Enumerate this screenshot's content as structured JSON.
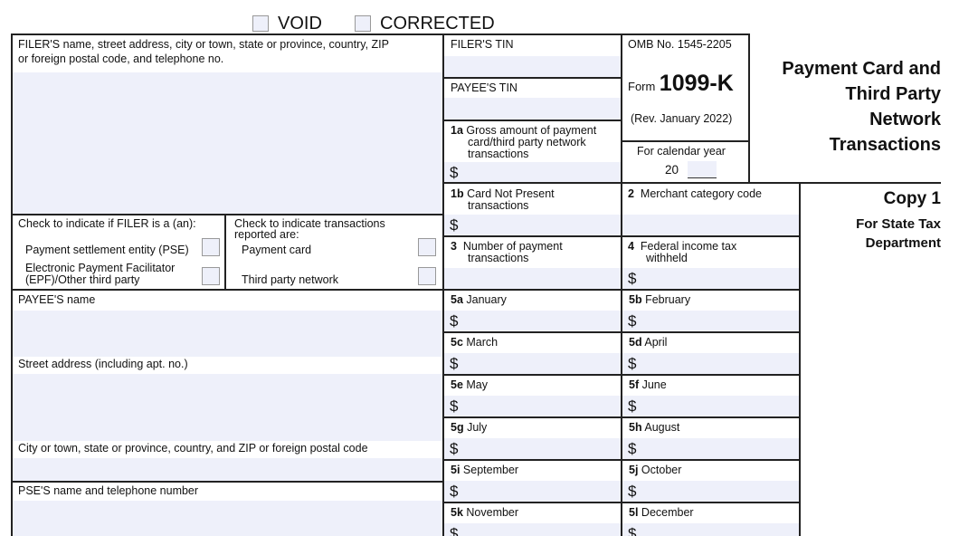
{
  "header": {
    "void_label": "VOID",
    "corrected_label": "CORRECTED"
  },
  "filer": {
    "label_line1": "FILER'S name, street address, city or town, state or province, country, ZIP",
    "label_line2": "or foreign postal code, and telephone no.",
    "filer_type_heading": "Check to indicate if FILER is a (an):",
    "pse_label": "Payment settlement entity (PSE)",
    "epf_label_line1": "Electronic Payment Facilitator",
    "epf_label_line2": "(EPF)/Other third party",
    "txn_heading_line1": "Check to indicate transactions",
    "txn_heading_line2": "reported are:",
    "payment_card_label": "Payment card",
    "third_party_label": "Third party network"
  },
  "payee": {
    "name_label": "PAYEE'S name",
    "street_label": "Street address (including apt. no.)",
    "city_label": "City or town, state or province, country, and ZIP or foreign postal code",
    "pse_label": "PSE'S name and telephone number"
  },
  "boxes": {
    "filer_tin": "FILER'S TIN",
    "payee_tin": "PAYEE'S TIN",
    "b1a_num": "1a",
    "b1a_line1": "Gross amount of payment",
    "b1a_line2": "card/third party network",
    "b1a_line3": "transactions",
    "b1b_num": "1b",
    "b1b_line1": "Card Not Present",
    "b1b_line2": "transactions",
    "b2_num": "2",
    "b2_label": "Merchant category code",
    "b3_num": "3",
    "b3_line1": "Number of payment",
    "b3_line2": "transactions",
    "b4_num": "4",
    "b4_line1": "Federal income tax",
    "b4_line2": "withheld",
    "dollar": "$"
  },
  "form_info": {
    "omb": "OMB No. 1545-2205",
    "form_word": "Form",
    "form_number": "1099-K",
    "revision": "(Rev. January 2022)",
    "calendar_label": "For calendar year",
    "year_prefix": "20"
  },
  "title": {
    "line1": "Payment Card and",
    "line2": "Third Party",
    "line3": "Network",
    "line4": "Transactions"
  },
  "copy": {
    "label": "Copy 1",
    "line1": "For State Tax",
    "line2": "Department"
  },
  "months": [
    {
      "num": "5a",
      "name": "January"
    },
    {
      "num": "5b",
      "name": "February"
    },
    {
      "num": "5c",
      "name": "March"
    },
    {
      "num": "5d",
      "name": "April"
    },
    {
      "num": "5e",
      "name": "May"
    },
    {
      "num": "5f",
      "name": "June"
    },
    {
      "num": "5g",
      "name": "July"
    },
    {
      "num": "5h",
      "name": "August"
    },
    {
      "num": "5i",
      "name": "September"
    },
    {
      "num": "5j",
      "name": "October"
    },
    {
      "num": "5k",
      "name": "November"
    },
    {
      "num": "5l",
      "name": "December"
    }
  ]
}
